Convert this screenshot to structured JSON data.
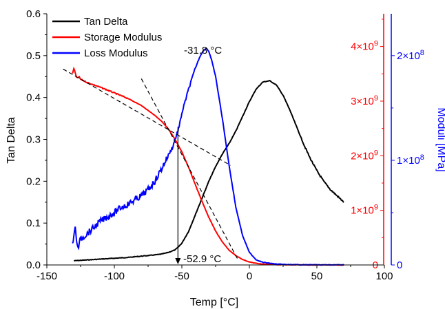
{
  "chart_data": {
    "type": "line",
    "xlabel": "Temp [°C]",
    "ylabel": "Tan Delta",
    "y2label": "Moduli [MPa]",
    "xlim": [
      -150,
      100
    ],
    "ylim": [
      0,
      0.6
    ],
    "y_red_lim": [
      0,
      4600000000
    ],
    "y_blue_lim": [
      0,
      240000000
    ],
    "x_ticks": [
      -150,
      -100,
      -50,
      0,
      50,
      100
    ],
    "x_tick_labels": [
      "-150",
      "-100",
      "-50",
      "0",
      "50",
      "100"
    ],
    "y_ticks": [
      0,
      0.1,
      0.2,
      0.3,
      0.4,
      0.5,
      0.6
    ],
    "y_tick_labels": [
      "0.0",
      "0.1",
      "0.2",
      "0.3",
      "0.4",
      "0.5",
      "0.6"
    ],
    "y_red_ticks": [
      0,
      1000000000,
      2000000000,
      3000000000,
      4000000000
    ],
    "y_red_tick_labels": [
      {
        "base": "0",
        "exp": ""
      },
      {
        "base": "1×10",
        "exp": "9"
      },
      {
        "base": "2×10",
        "exp": "9"
      },
      {
        "base": "3×10",
        "exp": "9"
      },
      {
        "base": "4×10",
        "exp": "9"
      }
    ],
    "y_blue_ticks": [
      0,
      100000000,
      200000000
    ],
    "y_blue_tick_labels": [
      {
        "base": "0",
        "exp": ""
      },
      {
        "base": "1×10",
        "exp": "8"
      },
      {
        "base": "2×10",
        "exp": "8"
      }
    ],
    "colors": {
      "tan": "#000000",
      "storage": "#ff0000",
      "loss": "#0000ff"
    },
    "legend_position": "top-left",
    "series": [
      {
        "name": "Tan Delta",
        "axis": "left",
        "color": "#000000",
        "x": [
          -130,
          -120,
          -110,
          -100,
          -90,
          -80,
          -70,
          -65,
          -60,
          -55,
          -52.9,
          -50,
          -45,
          -40,
          -35,
          -30,
          -25,
          -20,
          -15,
          -10,
          -5,
          0,
          5,
          10,
          15,
          20,
          25,
          30,
          35,
          40,
          45,
          50,
          55,
          60,
          65,
          70
        ],
        "y": [
          0.01,
          0.012,
          0.014,
          0.016,
          0.018,
          0.021,
          0.024,
          0.026,
          0.03,
          0.036,
          0.042,
          0.052,
          0.08,
          0.12,
          0.16,
          0.2,
          0.235,
          0.265,
          0.29,
          0.32,
          0.355,
          0.39,
          0.42,
          0.437,
          0.44,
          0.43,
          0.405,
          0.37,
          0.33,
          0.29,
          0.255,
          0.225,
          0.2,
          0.18,
          0.165,
          0.15
        ]
      },
      {
        "name": "Storage Modulus",
        "axis": "right-red",
        "color": "#ff0000",
        "x": [
          -131,
          -130,
          -129,
          -128,
          -126,
          -125,
          -120,
          -110,
          -100,
          -90,
          -80,
          -70,
          -65,
          -60,
          -55,
          -50,
          -45,
          -40,
          -35,
          -30,
          -25,
          -20,
          -15,
          -10,
          -5,
          0,
          5,
          10,
          20,
          30,
          40,
          50,
          60,
          70
        ],
        "y": [
          3500000000,
          3600000000,
          3520000000,
          3430000000,
          3440000000,
          3400000000,
          3340000000,
          3250000000,
          3150000000,
          3050000000,
          2920000000,
          2740000000,
          2630000000,
          2490000000,
          2300000000,
          2070000000,
          1790000000,
          1470000000,
          1160000000,
          870000000,
          620000000,
          420000000,
          270000000,
          170000000,
          100000000,
          55000000,
          30000000,
          15000000,
          5000000,
          2000000,
          1000000,
          500000,
          200000,
          100000
        ]
      },
      {
        "name": "Loss Modulus",
        "axis": "right-blue",
        "color": "#0000ff",
        "x": [
          -131,
          -129,
          -127,
          -125,
          -120,
          -115,
          -110,
          -105,
          -100,
          -95,
          -90,
          -85,
          -80,
          -75,
          -70,
          -65,
          -60,
          -57,
          -55,
          -52,
          -50,
          -45,
          -40,
          -37,
          -35,
          -33,
          -31.8,
          -30,
          -28,
          -25,
          -20,
          -15,
          -10,
          -5,
          0,
          5,
          10,
          20,
          30,
          40,
          50,
          60,
          70
        ],
        "y": [
          20000000,
          35000000,
          15000000,
          25000000,
          30000000,
          36000000,
          42000000,
          46000000,
          50000000,
          55000000,
          58000000,
          62000000,
          66000000,
          72000000,
          80000000,
          92000000,
          105000000,
          112000000,
          120000000,
          132000000,
          145000000,
          168000000,
          188000000,
          198000000,
          203000000,
          206000000,
          207000000,
          204000000,
          196000000,
          180000000,
          140000000,
          95000000,
          55000000,
          28000000,
          12000000,
          5000000,
          2500000,
          800000,
          300000,
          150000,
          100000,
          80000,
          70000
        ]
      }
    ],
    "annotations": [
      {
        "text": "-31.8 °C",
        "x": -31.8
      },
      {
        "text": "-52.9 °C",
        "x": -52.9
      }
    ]
  }
}
